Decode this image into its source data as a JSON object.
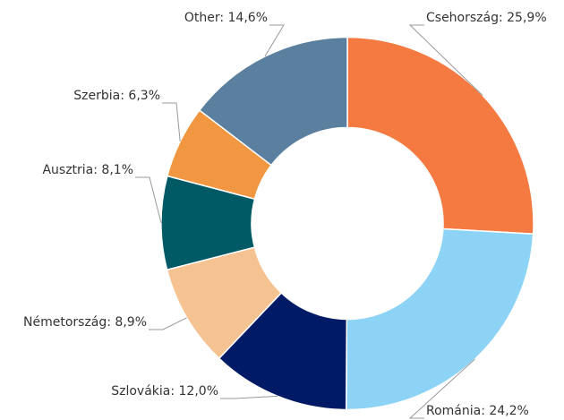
{
  "chart_data": {
    "type": "donut",
    "values": [
      25.9,
      24.2,
      12.0,
      8.9,
      8.1,
      6.3,
      14.6
    ],
    "value_labels": [
      "Csehország: 25,9%",
      "Románia: 24,2%",
      "Szlovákia: 12,0%",
      "Németország: 8,9%",
      "Ausztria: 8,1%",
      "Szerbia: 6,3%",
      "Other: 14,6%"
    ],
    "colors": [
      "#f47a42",
      "#8dd3f5",
      "#001a66",
      "#f5c392",
      "#005a66",
      "#f29741",
      "#5b7f9e"
    ]
  }
}
